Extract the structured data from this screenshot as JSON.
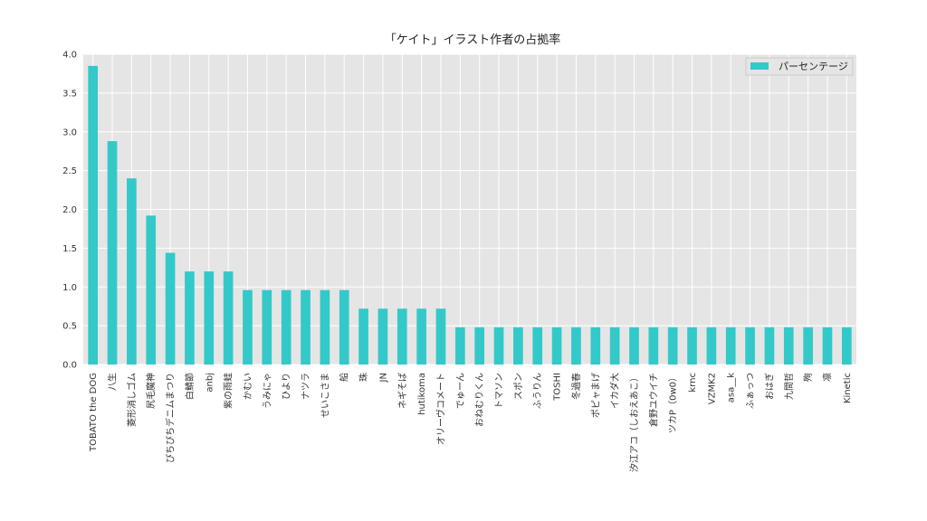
{
  "chart_data": {
    "type": "bar",
    "title": "「ケイト」イラスト作者の占拠率",
    "xlabel": "",
    "ylabel": "",
    "ylim": [
      0,
      4.0
    ],
    "yticks": [
      "0.0",
      "0.5",
      "1.0",
      "1.5",
      "2.0",
      "2.5",
      "3.0",
      "3.5",
      "4.0"
    ],
    "grid": true,
    "legend_position": "top-right",
    "colors": {
      "bar": "#33c9c9",
      "plot_bg": "#e5e5e5",
      "grid": "#ffffff"
    },
    "categories": [
      "TOBATO the DOG",
      "八生",
      "菱形消しゴム",
      "尻毛魔神",
      "ぴちぴちデニムまつり",
      "白鯖節",
      "anbj",
      "紫の雨蛙",
      "かむい",
      "うみにゃ",
      "ひより",
      "ナツラ",
      "せいこさま",
      "船",
      "珠",
      "JN",
      "ネギそば",
      "hutikoma",
      "オリーヴコメート",
      "でゅーん",
      "おねむりくん",
      "トマソン",
      "スポン",
      "ふうりん",
      "TOSHI",
      "冬過春",
      "ポピャまげ",
      "イカダ大",
      "汐江アコ（しおえあこ）",
      "倉野ユウイチ",
      "ツカP（0w0）",
      "krnc",
      "VZMK2",
      "asa__k",
      "ふぁっつ",
      "おはぎ",
      "九間哲",
      "殉",
      "凛",
      "Kinetic"
    ],
    "series": [
      {
        "name": "パーセンテージ",
        "values": [
          3.85,
          2.88,
          2.4,
          1.92,
          1.44,
          1.2,
          1.2,
          1.2,
          0.96,
          0.96,
          0.96,
          0.96,
          0.96,
          0.96,
          0.72,
          0.72,
          0.72,
          0.72,
          0.72,
          0.48,
          0.48,
          0.48,
          0.48,
          0.48,
          0.48,
          0.48,
          0.48,
          0.48,
          0.48,
          0.48,
          0.48,
          0.48,
          0.48,
          0.48,
          0.48,
          0.48,
          0.48,
          0.48,
          0.48,
          0.48
        ]
      }
    ]
  }
}
